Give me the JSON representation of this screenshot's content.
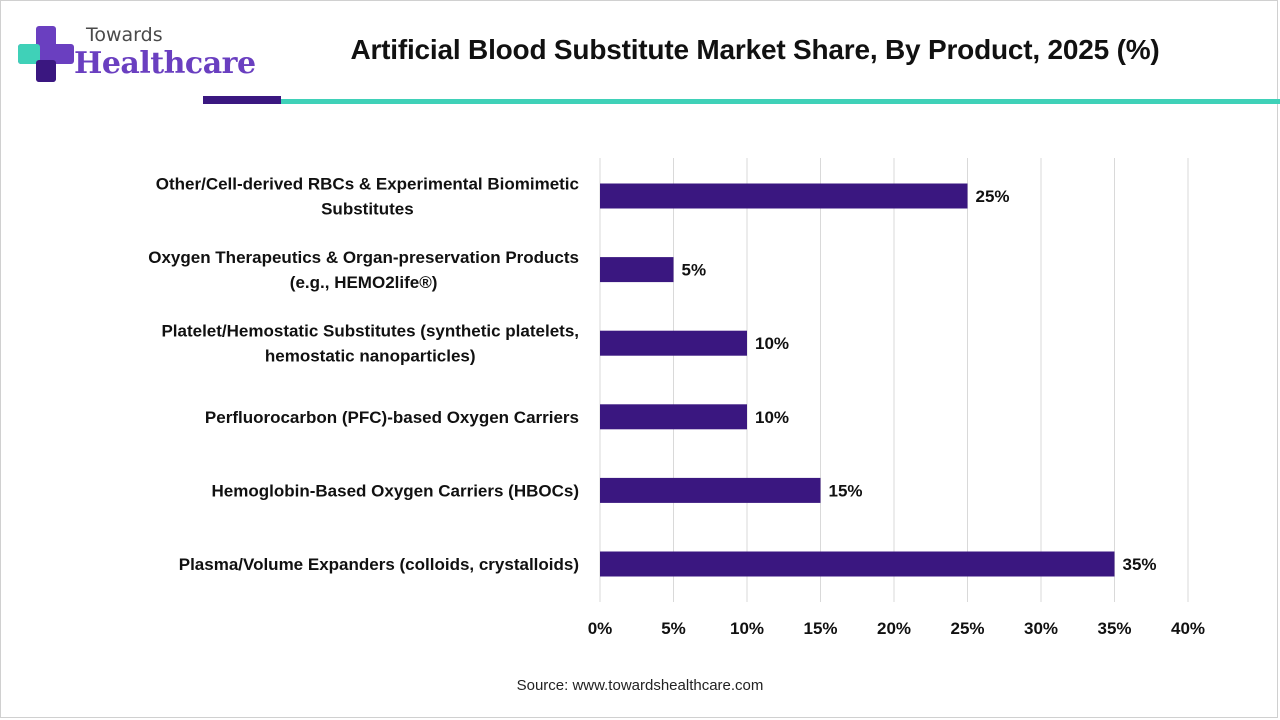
{
  "brand": {
    "line1": "Towards",
    "line2": "Healthcare"
  },
  "title": "Artificial Blood Substitute Market Share, By Product, 2025 (%)",
  "source": "Source: www.towardshealthcare.com",
  "colors": {
    "bar": "#3a1780",
    "accent_teal": "#3fd1b8",
    "brand_purple": "#6a3fc0",
    "grid": "#d9d9d9"
  },
  "chart_data": {
    "type": "bar",
    "orientation": "horizontal",
    "categories": [
      [
        "Other/Cell-derived RBCs & Experimental Biomimetic",
        "Substitutes"
      ],
      [
        "Oxygen Therapeutics & Organ-preservation Products",
        "(e.g., HEMO2life®)"
      ],
      [
        "Platelet/Hemostatic Substitutes (synthetic platelets,",
        "hemostatic nanoparticles)"
      ],
      [
        "Perfluorocarbon (PFC)-based Oxygen Carriers"
      ],
      [
        "Hemoglobin-Based Oxygen Carriers (HBOCs)"
      ],
      [
        "Plasma/Volume Expanders (colloids, crystalloids)"
      ]
    ],
    "values": [
      25,
      5,
      10,
      10,
      15,
      35
    ],
    "data_labels": [
      "25%",
      "5%",
      "10%",
      "10%",
      "15%",
      "35%"
    ],
    "xlim": [
      0,
      40
    ],
    "xticks": [
      0,
      5,
      10,
      15,
      20,
      25,
      30,
      35,
      40
    ],
    "xtick_labels": [
      "0%",
      "5%",
      "10%",
      "15%",
      "20%",
      "25%",
      "30%",
      "35%",
      "40%"
    ],
    "grid": true
  }
}
